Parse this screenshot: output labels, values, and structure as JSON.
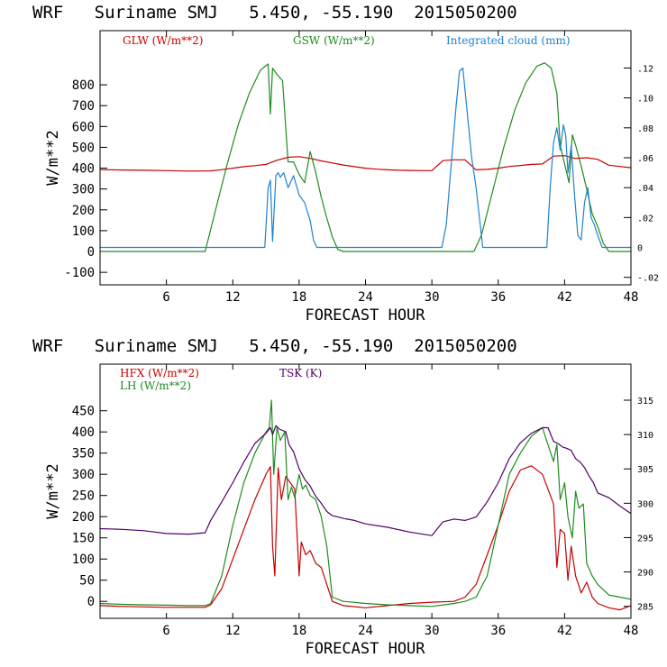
{
  "colors": {
    "red": "#c80000",
    "green": "#1e8c1e",
    "blue": "#1e82d2",
    "purple": "#500064"
  },
  "chart_data": [
    {
      "type": "line",
      "title": "WRF   Suriname SMJ   5.450, -55.190  2015050200",
      "xlabel": "FORECAST HOUR",
      "ylabel": "W/m**2",
      "xlim": [
        0,
        48
      ],
      "ylim": [
        -160,
        1060
      ],
      "xticks": [
        6,
        12,
        18,
        24,
        30,
        36,
        42,
        48
      ],
      "yticks": [
        -100,
        0,
        100,
        200,
        300,
        400,
        500,
        600,
        700,
        800
      ],
      "y2lim": [
        -0.025,
        0.145
      ],
      "y2ticks": [
        -0.02,
        0,
        0.02,
        0.04,
        0.06,
        0.08,
        0.1,
        0.12
      ],
      "y2ticklabels": [
        "-.02",
        "0",
        ".02",
        ".04",
        ".06",
        ".08",
        ".10",
        ".12"
      ],
      "series": [
        {
          "name": "GLW (W/m**2)",
          "color": "red",
          "axis": "left",
          "x": [
            0,
            2,
            4,
            6,
            8,
            10,
            11,
            12,
            13,
            14,
            15,
            16,
            17,
            18,
            19,
            20,
            21,
            22,
            23,
            24,
            25,
            26,
            27,
            28,
            29,
            30,
            31,
            32,
            33,
            34,
            35,
            36,
            37,
            38,
            39,
            40,
            41,
            42,
            43,
            44,
            45,
            46,
            47,
            48
          ],
          "y": [
            393,
            391,
            390,
            388,
            386,
            387,
            393,
            400,
            407,
            412,
            418,
            438,
            452,
            455,
            447,
            435,
            425,
            415,
            407,
            400,
            395,
            392,
            390,
            389,
            388,
            388,
            436,
            440,
            440,
            392,
            394,
            400,
            408,
            413,
            418,
            420,
            458,
            460,
            446,
            450,
            442,
            414,
            408,
            402
          ]
        },
        {
          "name": "GSW (W/m**2)",
          "color": "green",
          "axis": "left",
          "x": [
            0,
            9.5,
            10.5,
            11.5,
            12.5,
            13.5,
            14.5,
            15.2,
            15.4,
            15.6,
            16.0,
            16.5,
            17.0,
            17.5,
            18.0,
            18.5,
            19.0,
            19.5,
            20.0,
            20.5,
            21.0,
            21.5,
            22,
            24,
            26,
            28,
            30,
            32,
            33.8,
            34.5,
            35.5,
            36.5,
            37.5,
            38.5,
            39.5,
            40.2,
            40.8,
            41.3,
            41.6,
            42.0,
            42.4,
            42.7,
            43.0,
            43.5,
            44.0,
            44.5,
            45.0,
            45.5,
            46,
            48
          ],
          "y": [
            0,
            0,
            210,
            420,
            610,
            760,
            870,
            900,
            660,
            880,
            850,
            820,
            430,
            430,
            370,
            330,
            480,
            380,
            260,
            160,
            70,
            10,
            0,
            0,
            0,
            0,
            0,
            0,
            0,
            80,
            290,
            500,
            680,
            810,
            890,
            905,
            880,
            760,
            510,
            420,
            330,
            560,
            510,
            410,
            300,
            180,
            120,
            40,
            0,
            0
          ]
        },
        {
          "name": "Integrated cloud (mm)",
          "color": "blue",
          "axis": "right",
          "x": [
            0,
            14.9,
            15.2,
            15.4,
            15.6,
            15.9,
            16.1,
            16.3,
            16.6,
            17.0,
            17.5,
            18.0,
            18.5,
            19.0,
            19.3,
            19.6,
            20,
            30.9,
            31.3,
            31.8,
            32.2,
            32.5,
            32.8,
            33.2,
            33.6,
            34.0,
            34.3,
            34.6,
            35,
            40.4,
            40.7,
            41.0,
            41.3,
            41.6,
            41.9,
            42.1,
            42.3,
            42.6,
            42.9,
            43.2,
            43.5,
            43.8,
            44.1,
            44.4,
            44.7,
            45.0,
            45.4,
            48
          ],
          "y": [
            0,
            0,
            0.04,
            0.045,
            0.004,
            0.048,
            0.05,
            0.047,
            0.05,
            0.04,
            0.048,
            0.035,
            0.03,
            0.018,
            0.005,
            0,
            0,
            0,
            0.015,
            0.06,
            0.095,
            0.118,
            0.12,
            0.09,
            0.06,
            0.04,
            0.02,
            0,
            0,
            0,
            0.04,
            0.07,
            0.08,
            0.065,
            0.082,
            0.075,
            0.05,
            0.068,
            0.035,
            0.008,
            0.005,
            0.03,
            0.04,
            0.02,
            0.015,
            0.008,
            0,
            0
          ]
        }
      ]
    },
    {
      "type": "line",
      "title": "WRF   Suriname SMJ   5.450, -55.190  2015050200",
      "xlabel": "FORECAST HOUR",
      "ylabel": "W/m**2",
      "xlim": [
        0,
        48
      ],
      "ylim": [
        -40,
        560
      ],
      "xticks": [
        6,
        12,
        18,
        24,
        30,
        36,
        42,
        48
      ],
      "yticks": [
        0,
        50,
        100,
        150,
        200,
        250,
        300,
        350,
        400,
        450
      ],
      "y2lim": [
        283.25,
        320.25
      ],
      "y2ticks": [
        285,
        290,
        295,
        300,
        305,
        310,
        315
      ],
      "series": [
        {
          "name": "HFX (W/m**2)",
          "color": "red",
          "axis": "left",
          "x": [
            0,
            2,
            4,
            6,
            8,
            9.5,
            10,
            11,
            12,
            13,
            14,
            15,
            15.4,
            15.6,
            15.8,
            16.1,
            16.4,
            16.8,
            17.2,
            17.6,
            18.0,
            18.2,
            18.6,
            19.0,
            19.5,
            20.0,
            20.5,
            21.0,
            22,
            24,
            26,
            28,
            30,
            32,
            33,
            34,
            35,
            36,
            37,
            38,
            39,
            40,
            41.0,
            41.3,
            41.6,
            42.0,
            42.3,
            42.6,
            43.0,
            43.5,
            44.0,
            44.5,
            45.0,
            46,
            47,
            48
          ],
          "y": [
            -10,
            -12,
            -13,
            -14,
            -14,
            -14,
            -8,
            30,
            100,
            170,
            240,
            300,
            318,
            130,
            60,
            315,
            240,
            295,
            280,
            265,
            60,
            140,
            110,
            120,
            90,
            80,
            40,
            0,
            -10,
            -15,
            -10,
            -5,
            -2,
            0,
            10,
            40,
            110,
            180,
            260,
            310,
            320,
            300,
            230,
            80,
            170,
            160,
            50,
            130,
            60,
            20,
            45,
            10,
            -5,
            -15,
            -20,
            -10
          ]
        },
        {
          "name": "LH (W/m**2)",
          "color": "green",
          "axis": "left",
          "x": [
            0,
            2,
            4,
            6,
            8,
            9.5,
            10,
            11,
            12,
            13,
            14,
            15,
            15.3,
            15.5,
            15.7,
            16.0,
            16.3,
            16.7,
            17.0,
            17.3,
            17.6,
            18.0,
            18.3,
            18.6,
            19.0,
            19.5,
            20.0,
            20.5,
            21,
            22,
            24,
            26,
            28,
            30,
            32,
            33,
            34,
            35,
            36,
            37,
            38,
            39,
            40,
            41.0,
            41.3,
            41.6,
            42.0,
            42.3,
            42.7,
            43.0,
            43.3,
            43.7,
            44.0,
            44.5,
            45.0,
            46,
            48
          ],
          "y": [
            -5,
            -7,
            -8,
            -9,
            -10,
            -10,
            -5,
            60,
            180,
            280,
            350,
            400,
            410,
            475,
            300,
            410,
            380,
            400,
            240,
            270,
            245,
            300,
            265,
            275,
            250,
            240,
            200,
            130,
            10,
            0,
            -5,
            -8,
            -10,
            -12,
            -5,
            0,
            10,
            60,
            180,
            300,
            350,
            390,
            410,
            330,
            370,
            240,
            280,
            200,
            150,
            260,
            220,
            230,
            90,
            60,
            40,
            15,
            5
          ]
        },
        {
          "name": "TSK (K)",
          "color": "purple",
          "axis": "right",
          "x": [
            0,
            2,
            4,
            6,
            8,
            9.5,
            10,
            11,
            12,
            13,
            14,
            15,
            15.4,
            15.6,
            15.9,
            16.2,
            16.5,
            16.8,
            17.1,
            17.5,
            18,
            18.5,
            19,
            19.5,
            20,
            20.5,
            21,
            22,
            23,
            24,
            26,
            28,
            30,
            31,
            32,
            33,
            34,
            35,
            36,
            37,
            38,
            39,
            40,
            40.5,
            41.0,
            41.4,
            41.8,
            42.2,
            42.6,
            43.0,
            43.4,
            43.8,
            44.2,
            44.6,
            45,
            46,
            47,
            48
          ],
          "y": [
            296.3,
            296.2,
            296.0,
            295.6,
            295.5,
            295.7,
            297.5,
            300.2,
            303.0,
            306.0,
            308.7,
            310.2,
            311.0,
            310.0,
            311.3,
            310.8,
            310.6,
            310.4,
            308.5,
            307.5,
            305.0,
            303.5,
            302.5,
            301.0,
            300.0,
            298.8,
            298.2,
            297.8,
            297.5,
            297.0,
            296.5,
            295.8,
            295.3,
            297.3,
            297.7,
            297.5,
            298.0,
            300.2,
            303.0,
            306.5,
            308.8,
            310.2,
            311.0,
            311.0,
            309.0,
            308.7,
            308.2,
            308.0,
            307.7,
            306.5,
            306.0,
            305.2,
            304.0,
            303.0,
            301.5,
            300.8,
            299.6,
            298.5
          ]
        }
      ]
    }
  ]
}
